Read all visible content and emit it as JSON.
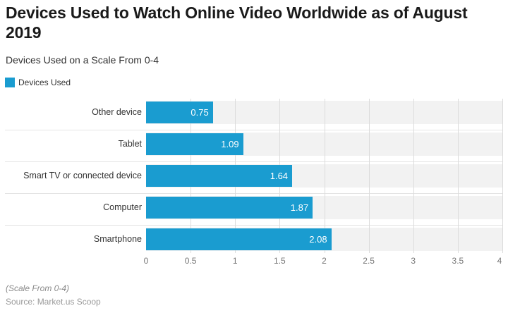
{
  "title": "Devices Used to Watch Online Video Worldwide as of August 2019",
  "subtitle": "Devices Used on a Scale From 0-4",
  "legend": {
    "label": "Devices Used",
    "color": "#1a9cd0"
  },
  "footer": {
    "note": "(Scale From 0-4)",
    "source": "Source: Market.us Scoop"
  },
  "colors": {
    "bar": "#1a9cd0",
    "track": "#f2f2f2",
    "grid": "#dcdcdc"
  },
  "chart_data": {
    "type": "bar",
    "orientation": "horizontal",
    "title": "Devices Used to Watch Online Video Worldwide as of August 2019",
    "subtitle": "Devices Used on a Scale From 0-4",
    "categories": [
      "Other device",
      "Tablet",
      "Smart TV or connected device",
      "Computer",
      "Smartphone"
    ],
    "series": [
      {
        "name": "Devices Used",
        "values": [
          0.75,
          1.09,
          1.64,
          1.87,
          2.08
        ]
      }
    ],
    "value_labels": [
      "0.75",
      "1.09",
      "1.64",
      "1.87",
      "2.08"
    ],
    "xlabel": "",
    "ylabel": "",
    "xlim": [
      0,
      4
    ],
    "x_ticks": [
      "0",
      "0.5",
      "1",
      "1.5",
      "2",
      "2.5",
      "3",
      "3.5",
      "4"
    ],
    "grid": true,
    "legend_position": "top-left",
    "note": "(Scale From 0-4)",
    "source": "Source: Market.us Scoop"
  }
}
